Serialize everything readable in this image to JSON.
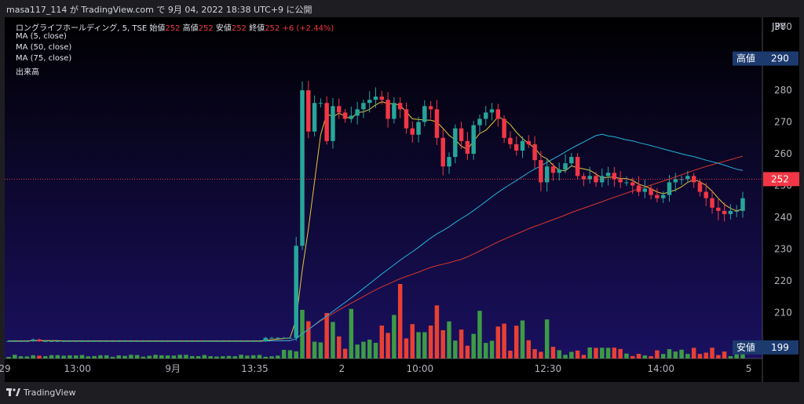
{
  "header": {
    "text": "masa117_114 が TradingView.com で 9月 04, 2022 18:38 UTC+9 に公開"
  },
  "footer": {
    "brand": "TradingView"
  },
  "legend": {
    "symbol": "ロングライフホールディング, 5, TSE",
    "open_label": "始値",
    "open": "252",
    "high_label": "高値",
    "high": "252",
    "low_label": "安値",
    "low": "252",
    "close_label": "終値",
    "close": "252",
    "change": "+6 (+2.44%)",
    "ma5": "MA (5, close)",
    "ma50": "MA (50, close)",
    "ma75": "MA (75, close)",
    "volume": "出来高"
  },
  "colors": {
    "up": "#26a69a",
    "upVol": "#3d9a45",
    "down": "#f23645",
    "downVol": "#e84033",
    "ma5": "#e5c53a",
    "ma50": "#25b4d8",
    "ma75": "#d9372e",
    "current": "#f23645",
    "highlow": "#1c3a6e"
  },
  "chart_data": {
    "type": "candlestick",
    "currency": "JPY",
    "yaxis_ticks": [
      210,
      220,
      230,
      240,
      250,
      260,
      270,
      280,
      290,
      300
    ],
    "xaxis_labels": [
      "29",
      "13:00",
      "9月",
      "13:35",
      "2",
      "10:00",
      "12:30",
      "14:00",
      "5"
    ],
    "markers": [
      {
        "label": "高値",
        "value": 290
      },
      {
        "label": "252",
        "value": 252
      },
      {
        "label": "安値",
        "value": 199
      }
    ],
    "closes": [
      201,
      201,
      201,
      201,
      201.5,
      201,
      201,
      201,
      201,
      201,
      201,
      201,
      201,
      201,
      201,
      201,
      201,
      201,
      201,
      201,
      201,
      201,
      201,
      201,
      201,
      201,
      201,
      201,
      201,
      201,
      201,
      201,
      201,
      201,
      201,
      201,
      201,
      201,
      201,
      201,
      201,
      201,
      202,
      202,
      202,
      202,
      202,
      231,
      280,
      267,
      276,
      276,
      264,
      275,
      273,
      271,
      272,
      274,
      276,
      277,
      278,
      277,
      271,
      276,
      274,
      268,
      266,
      270,
      275,
      274,
      265,
      256,
      259,
      268,
      264,
      260,
      269,
      271,
      273,
      274,
      271,
      265,
      263,
      261,
      264,
      263,
      258,
      251,
      256,
      254,
      255,
      257,
      259,
      253,
      252,
      253,
      251,
      253,
      254,
      252,
      251,
      251,
      250,
      248,
      249,
      247,
      246,
      247,
      251,
      252,
      252,
      253,
      251,
      248,
      246,
      243,
      242,
      241,
      242,
      242,
      246
    ]
  }
}
